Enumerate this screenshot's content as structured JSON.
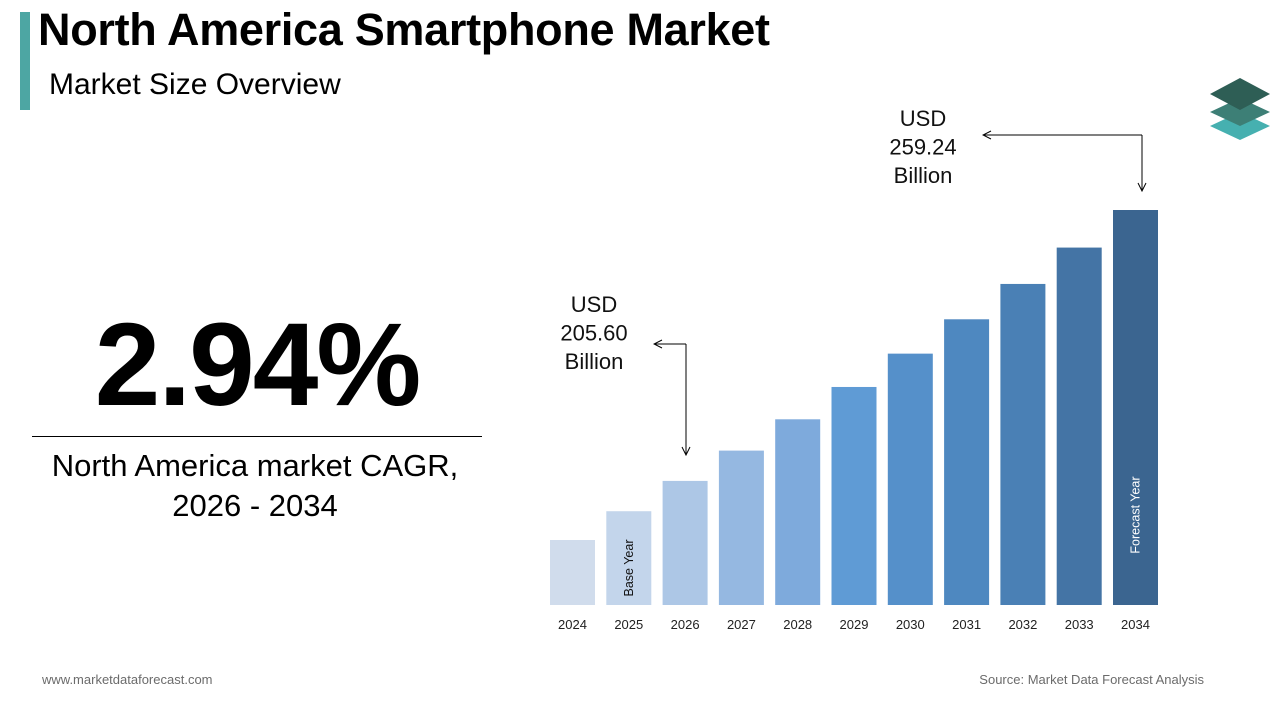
{
  "header": {
    "title": "North America Smartphone Market",
    "subtitle": "Market Size Overview"
  },
  "stat": {
    "value": "2.94%",
    "caption_line1": "North America market CAGR,",
    "caption_line2": "2026 - 2034"
  },
  "footer": {
    "website": "www.marketdataforecast.com",
    "source": "Source: Market Data Forecast Analysis"
  },
  "logo": {
    "icon": "stacked-layers-icon"
  },
  "chart_data": {
    "type": "bar",
    "categories": [
      "2024",
      "2025",
      "2026",
      "2027",
      "2028",
      "2029",
      "2030",
      "2031",
      "2032",
      "2033",
      "2034"
    ],
    "values": [
      193.9,
      199.6,
      205.6,
      211.6,
      217.8,
      224.2,
      230.8,
      237.6,
      244.6,
      251.8,
      259.24
    ],
    "colors": [
      "#d0dcec",
      "#c3d5eb",
      "#adc7e6",
      "#95b8e1",
      "#7eaadc",
      "#5f9bd5",
      "#5590ca",
      "#4e88c0",
      "#4a80b5",
      "#4474a5",
      "#3b6590"
    ],
    "bar_labels": {
      "2025": "Base Year",
      "2034": "Forecast Year"
    },
    "callouts": [
      {
        "category": "2026",
        "lines": [
          "USD",
          "205.60",
          "Billion"
        ]
      },
      {
        "category": "2034",
        "lines": [
          "USD",
          "259.24",
          "Billion"
        ]
      }
    ]
  }
}
